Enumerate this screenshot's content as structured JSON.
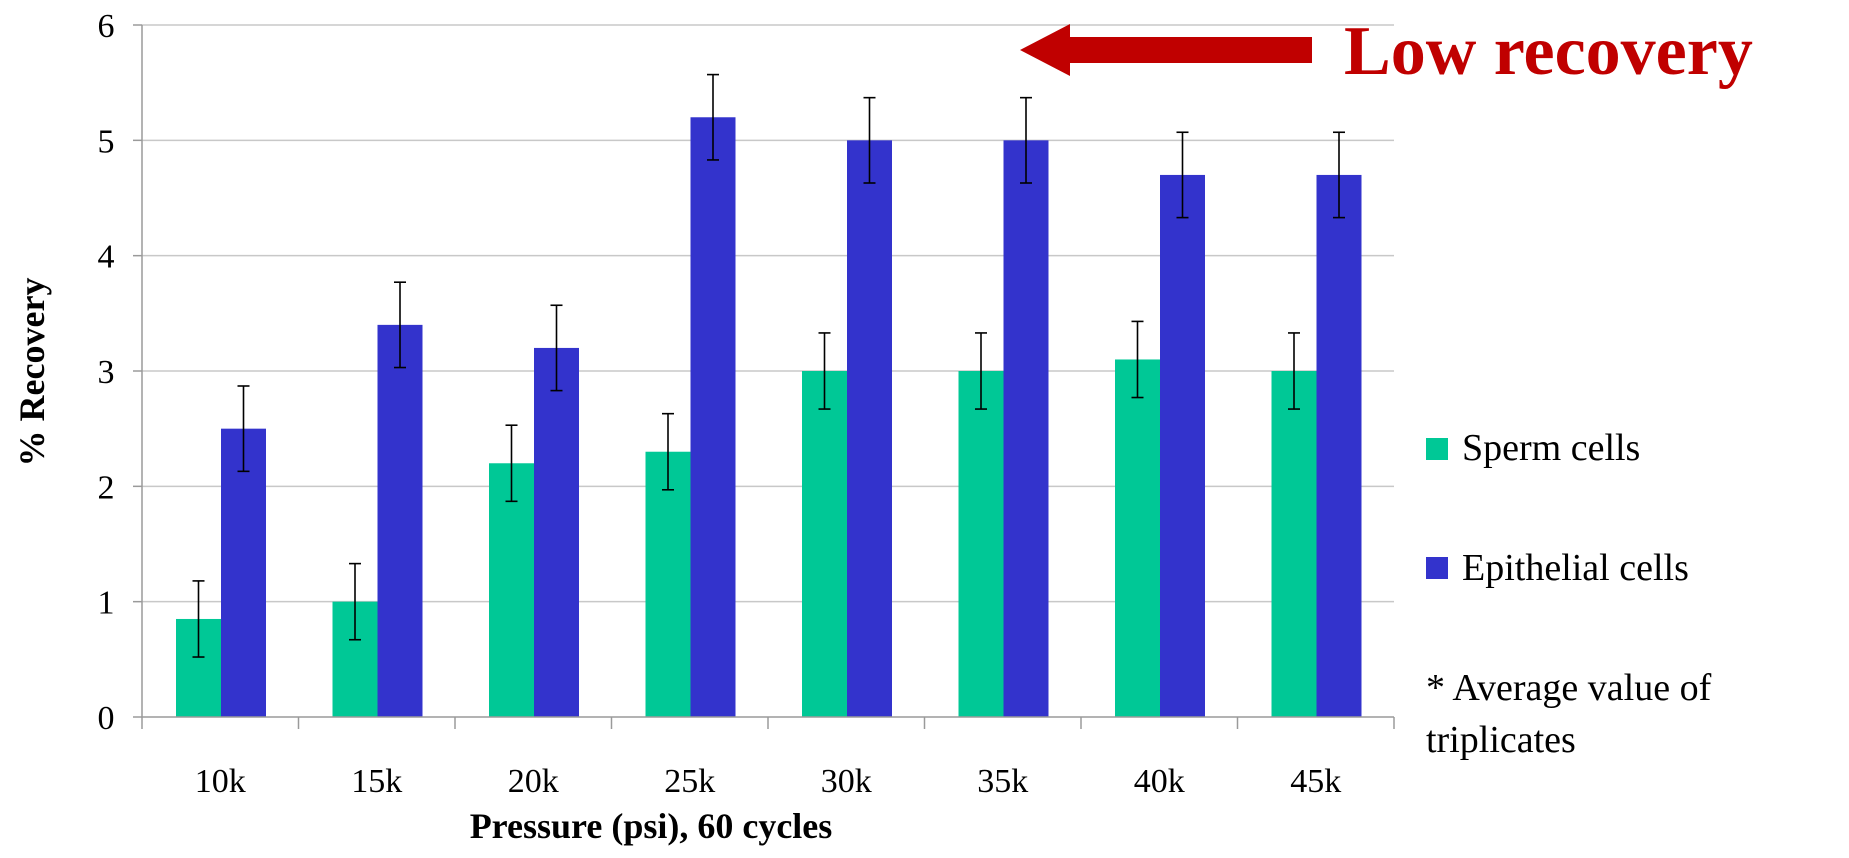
{
  "chart_data": {
    "type": "bar",
    "categories": [
      "10k",
      "15k",
      "20k",
      "25k",
      "30k",
      "35k",
      "40k",
      "45k"
    ],
    "series": [
      {
        "name": "Sperm cells",
        "color": "#00C896",
        "values": [
          0.85,
          1.0,
          2.2,
          2.3,
          3.0,
          3.0,
          3.1,
          3.0
        ],
        "error": [
          0.33,
          0.33,
          0.33,
          0.33,
          0.33,
          0.33,
          0.33,
          0.33
        ]
      },
      {
        "name": "Epithelial cells",
        "color": "#3333CC",
        "values": [
          2.5,
          3.4,
          3.2,
          5.2,
          5.0,
          5.0,
          4.7,
          4.7
        ],
        "error": [
          0.37,
          0.37,
          0.37,
          0.37,
          0.37,
          0.37,
          0.37,
          0.37
        ]
      }
    ],
    "ylim": [
      0,
      6
    ],
    "yticks": [
      0,
      1,
      2,
      3,
      4,
      5,
      6
    ],
    "xlabel": "Pressure (psi), 60 cycles",
    "ylabel": "% Recovery",
    "grid": true,
    "legend_position": "right"
  },
  "note": "* Average value of triplicates",
  "callout": {
    "text": "Low recovery",
    "color": "#C00000"
  }
}
